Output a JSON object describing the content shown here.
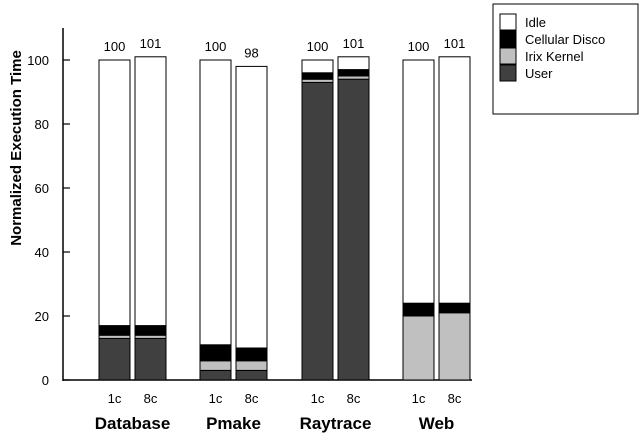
{
  "chart_data": {
    "type": "bar",
    "stacked": true,
    "ylabel": "Normalized Execution Time",
    "ylim": [
      0,
      110
    ],
    "yticks": [
      0,
      20,
      40,
      60,
      80,
      100
    ],
    "grid": false,
    "legend_position": "top-right",
    "groups": [
      {
        "name": "Database",
        "bars": [
          {
            "label": "1c",
            "total": "100",
            "values": {
              "User": 13,
              "Irix Kernel": 1,
              "Cellular Disco": 3,
              "Idle": 83
            }
          },
          {
            "label": "8c",
            "total": "101",
            "values": {
              "User": 13,
              "Irix Kernel": 1,
              "Cellular Disco": 3,
              "Idle": 84
            }
          }
        ]
      },
      {
        "name": "Pmake",
        "bars": [
          {
            "label": "1c",
            "total": "100",
            "values": {
              "User": 3,
              "Irix Kernel": 3,
              "Cellular Disco": 5,
              "Idle": 89
            }
          },
          {
            "label": "8c",
            "total": "98",
            "values": {
              "User": 3,
              "Irix Kernel": 3,
              "Cellular Disco": 4,
              "Idle": 88
            }
          }
        ]
      },
      {
        "name": "Raytrace",
        "bars": [
          {
            "label": "1c",
            "total": "100",
            "values": {
              "User": 93,
              "Irix Kernel": 1,
              "Cellular Disco": 2,
              "Idle": 4
            }
          },
          {
            "label": "8c",
            "total": "101",
            "values": {
              "User": 94,
              "Irix Kernel": 1,
              "Cellular Disco": 2,
              "Idle": 4
            }
          }
        ]
      },
      {
        "name": "Web",
        "bars": [
          {
            "label": "1c",
            "total": "100",
            "values": {
              "User": 0,
              "Irix Kernel": 20,
              "Cellular Disco": 4,
              "Idle": 76
            }
          },
          {
            "label": "8c",
            "total": "101",
            "values": {
              "User": 0,
              "Irix Kernel": 21,
              "Cellular Disco": 3,
              "Idle": 77
            }
          }
        ]
      }
    ],
    "series": [
      {
        "name": "User",
        "color": "#404040"
      },
      {
        "name": "Irix Kernel",
        "color": "#c0c0c0"
      },
      {
        "name": "Cellular Disco",
        "color": "#000000"
      },
      {
        "name": "Idle",
        "color": "#ffffff"
      }
    ],
    "legend_order": [
      "Idle",
      "Cellular Disco",
      "Irix Kernel",
      "User"
    ]
  }
}
